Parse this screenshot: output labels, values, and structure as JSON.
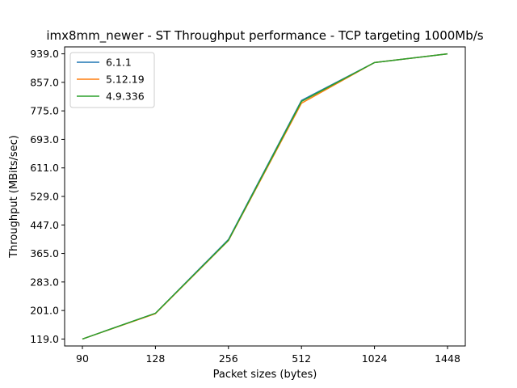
{
  "chart_data": {
    "type": "line",
    "title": "imx8mm_newer - ST Throughput performance - TCP targeting 1000Mb/s",
    "xlabel": "Packet sizes (bytes)",
    "ylabel": "Throughput (MBits/sec)",
    "categories": [
      "90",
      "128",
      "256",
      "512",
      "1024",
      "1448"
    ],
    "yticks": [
      "119.0",
      "201.0",
      "283.0",
      "365.0",
      "447.0",
      "529.0",
      "611.0",
      "693.0",
      "775.0",
      "857.0",
      "939.0"
    ],
    "ylim": [
      99,
      959
    ],
    "legend_position": "upper-left",
    "grid": false,
    "series": [
      {
        "name": "6.1.1",
        "color": "#1f77b4",
        "values": [
          119,
          193,
          405,
          805,
          914,
          939
        ]
      },
      {
        "name": "5.12.19",
        "color": "#ff7f0e",
        "values": [
          119,
          192,
          402,
          797,
          914,
          939
        ]
      },
      {
        "name": "4.9.336",
        "color": "#2ca02c",
        "values": [
          119,
          193,
          403,
          802,
          914,
          939
        ]
      }
    ]
  }
}
